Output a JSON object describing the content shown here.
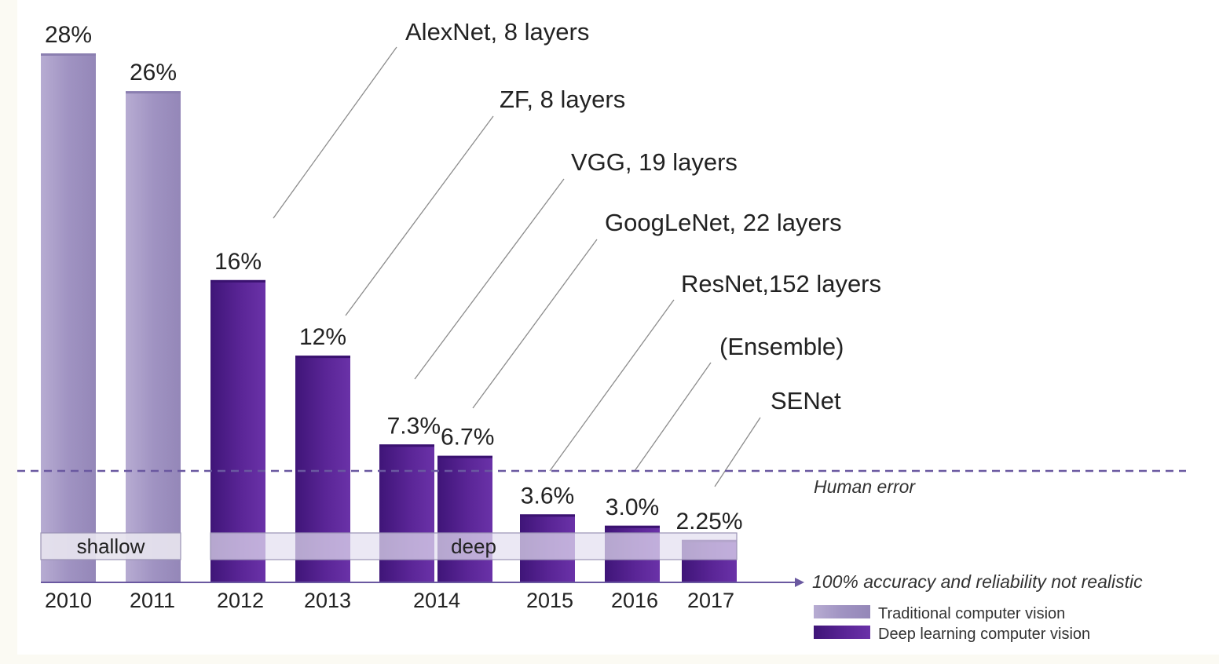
{
  "chart_data": {
    "type": "bar",
    "title": "",
    "xlabel": "",
    "ylabel": "",
    "ylim": [
      0,
      30
    ],
    "grid": false,
    "legend_position": "bottom-right",
    "colors": {
      "traditional": "#a89bc6",
      "deep": "#55208f",
      "human_error_line": "#6a58a0",
      "axis": "#6a58a0",
      "band": "#e4e0ee"
    },
    "bars": [
      {
        "year": "2010",
        "value": 28,
        "label": "28%",
        "series": "traditional"
      },
      {
        "year": "2011",
        "value": 26,
        "label": "26%",
        "series": "traditional"
      },
      {
        "year": "2012",
        "value": 16,
        "label": "16%",
        "series": "deep",
        "model": "AlexNet, 8 layers"
      },
      {
        "year": "2013",
        "value": 12,
        "label": "12%",
        "series": "deep",
        "model": "ZF, 8 layers"
      },
      {
        "year": "2014",
        "value": 7.3,
        "label": "7.3%",
        "series": "deep",
        "model": "VGG, 19 layers"
      },
      {
        "year": "2014",
        "value": 6.7,
        "label": "6.7%",
        "series": "deep",
        "model": "GoogLeNet, 22 layers"
      },
      {
        "year": "2015",
        "value": 3.6,
        "label": "3.6%",
        "series": "deep",
        "model": "ResNet,152 layers"
      },
      {
        "year": "2016",
        "value": 3.0,
        "label": "3.0%",
        "series": "deep",
        "model": "(Ensemble)"
      },
      {
        "year": "2017",
        "value": 2.25,
        "label": "2.25%",
        "series": "deep",
        "model": "SENet"
      }
    ],
    "x_tick_labels": [
      "2010",
      "2011",
      "2012",
      "2013",
      "2014",
      "2015",
      "2016",
      "2017"
    ],
    "human_error": {
      "value": 5.1,
      "label": "Human error"
    },
    "axis_note": "100% accuracy and reliability not realistic",
    "bands": {
      "shallow": "shallow",
      "deep": "deep"
    },
    "legend": [
      {
        "label": "Traditional computer vision",
        "series": "traditional"
      },
      {
        "label": "Deep learning computer vision",
        "series": "deep"
      }
    ]
  }
}
